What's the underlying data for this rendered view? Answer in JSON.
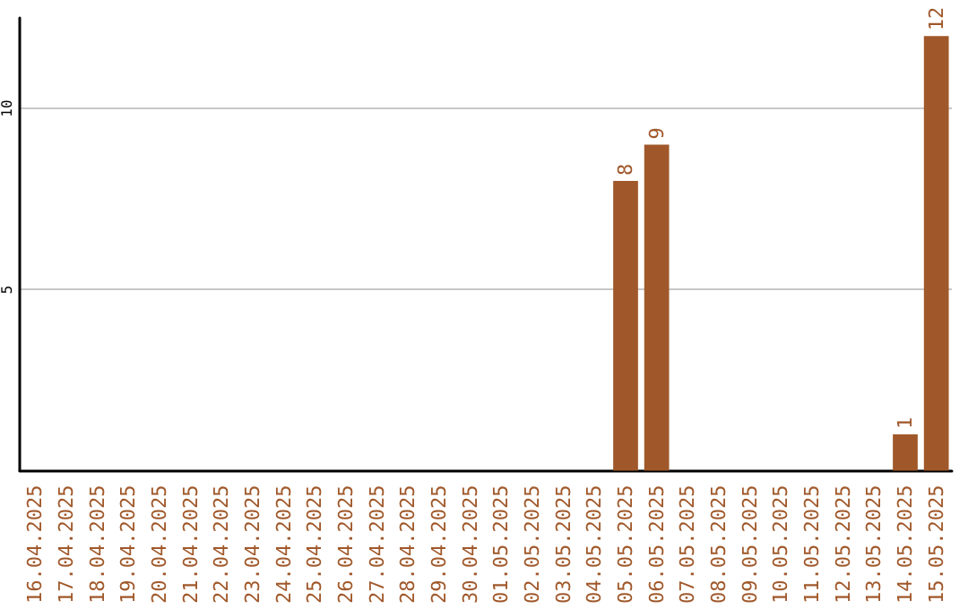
{
  "chart_data": {
    "type": "bar",
    "categories": [
      "16.04.2025",
      "17.04.2025",
      "18.04.2025",
      "19.04.2025",
      "20.04.2025",
      "21.04.2025",
      "22.04.2025",
      "23.04.2025",
      "24.04.2025",
      "25.04.2025",
      "26.04.2025",
      "27.04.2025",
      "28.04.2025",
      "29.04.2025",
      "30.04.2025",
      "01.05.2025",
      "02.05.2025",
      "03.05.2025",
      "04.05.2025",
      "05.05.2025",
      "06.05.2025",
      "07.05.2025",
      "08.05.2025",
      "09.05.2025",
      "10.05.2025",
      "11.05.2025",
      "12.05.2025",
      "13.05.2025",
      "14.05.2025",
      "15.05.2025"
    ],
    "values": [
      0,
      0,
      0,
      0,
      0,
      0,
      0,
      0,
      0,
      0,
      0,
      0,
      0,
      0,
      0,
      0,
      0,
      0,
      0,
      8,
      9,
      0,
      0,
      0,
      0,
      0,
      0,
      0,
      1,
      12
    ],
    "value_labels": [
      null,
      null,
      null,
      null,
      null,
      null,
      null,
      null,
      null,
      null,
      null,
      null,
      null,
      null,
      null,
      null,
      null,
      null,
      null,
      "8",
      "9",
      null,
      null,
      null,
      null,
      null,
      null,
      null,
      "1",
      "12"
    ],
    "color": "#a0582a",
    "ylim": [
      0,
      12.5
    ],
    "yticks": [
      5,
      10
    ],
    "grid": "y"
  }
}
